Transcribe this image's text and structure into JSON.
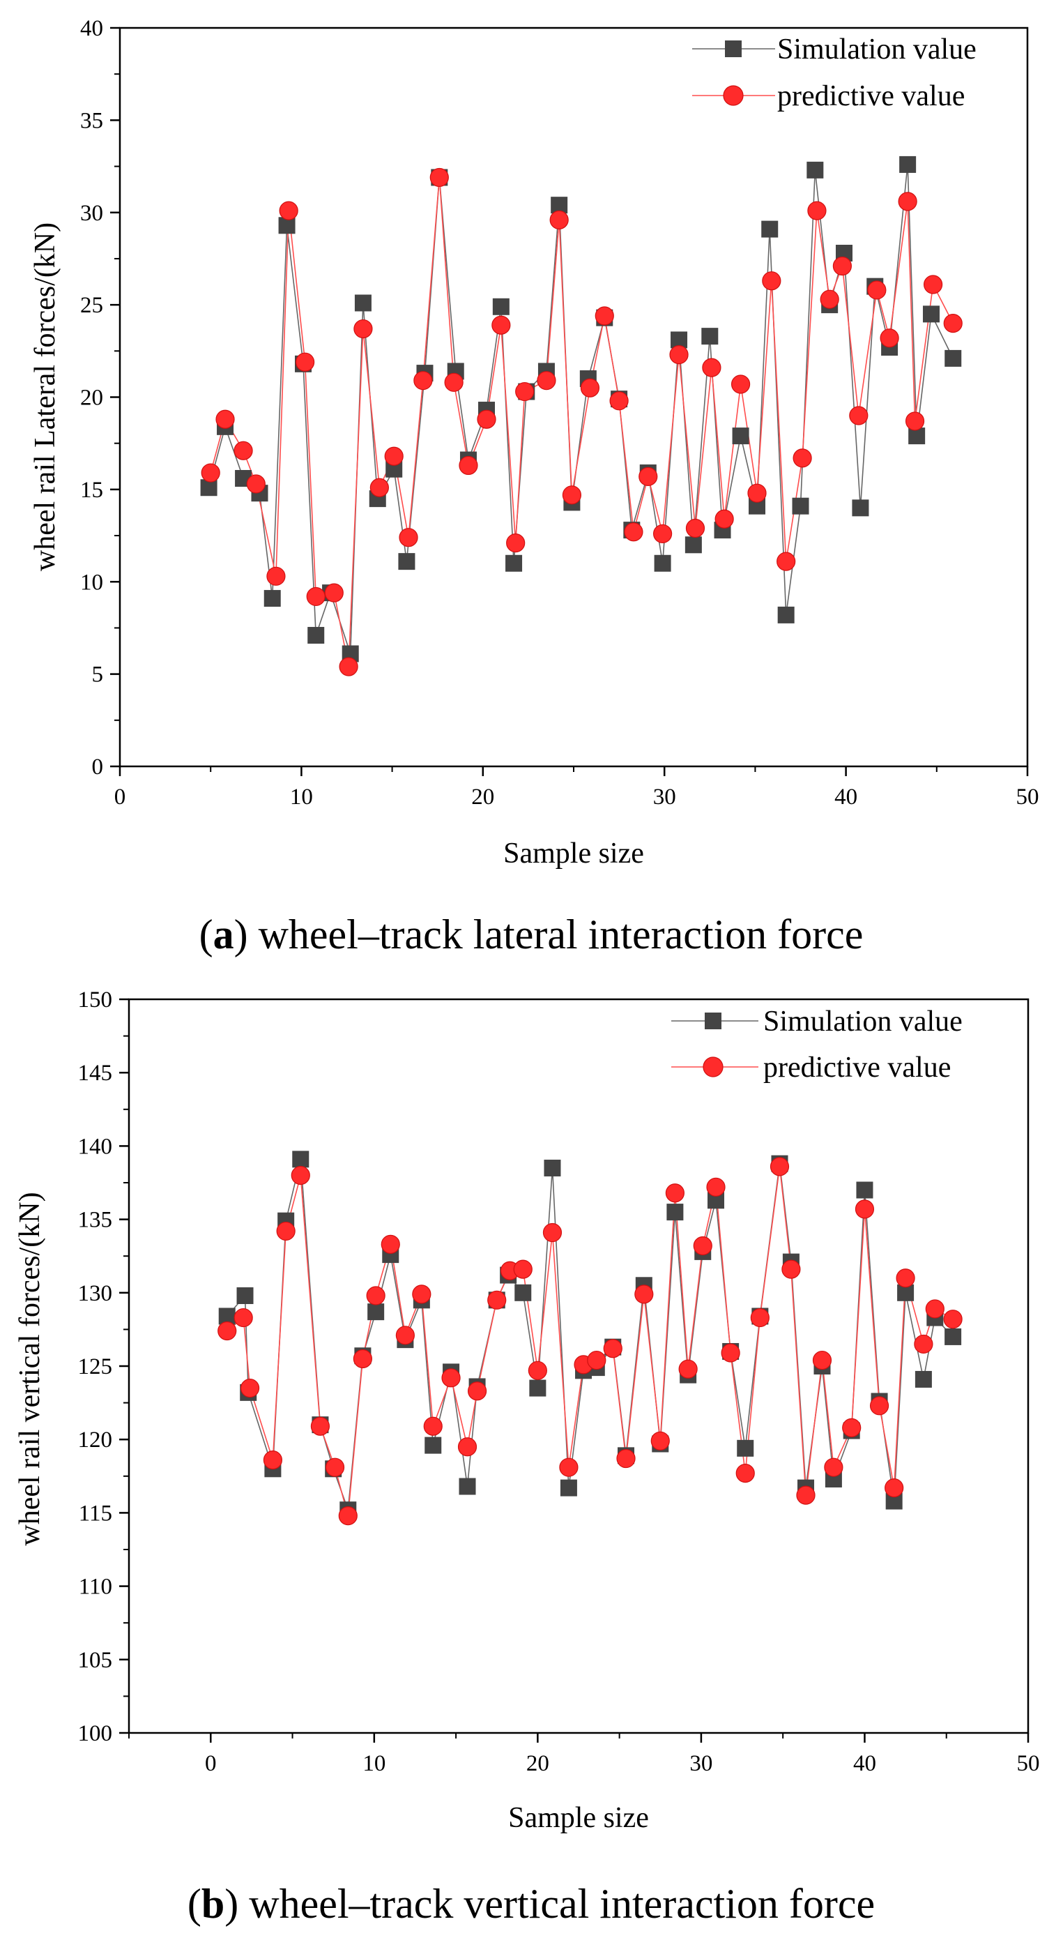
{
  "chart_data": [
    {
      "type": "line",
      "xlabel": "Sample size",
      "ylabel": "wheel rail Lateral forces/(kN)",
      "xlim": [
        0,
        50
      ],
      "ylim": [
        0,
        40
      ],
      "xticks": [
        "0",
        "10",
        "20",
        "30",
        "40",
        "50"
      ],
      "yticks": [
        "0",
        "5",
        "10",
        "15",
        "20",
        "25",
        "30",
        "35",
        "40"
      ],
      "grid": false,
      "legend_position": "top-right",
      "caption_letter": "a",
      "caption_text": "wheel–track lateral interaction force",
      "series": [
        {
          "name": "Simulation value",
          "marker": "square",
          "color": "#444444",
          "line_color": "#666666",
          "x": [
            4.9,
            5.8,
            6.8,
            7.7,
            8.4,
            9.2,
            10.1,
            10.8,
            11.6,
            12.7,
            13.4,
            14.2,
            15.1,
            15.8,
            16.8,
            17.6,
            18.5,
            19.2,
            20.2,
            21.0,
            21.7,
            22.4,
            23.5,
            24.2,
            24.9,
            25.8,
            26.7,
            27.5,
            28.2,
            29.1,
            29.9,
            30.8,
            31.6,
            32.5,
            33.2,
            34.2,
            35.1,
            35.8,
            36.7,
            37.5,
            38.3,
            39.1,
            39.9,
            40.8,
            41.6,
            42.4,
            43.4,
            43.9,
            44.7,
            45.9
          ],
          "y": [
            15.1,
            18.4,
            15.6,
            14.8,
            9.1,
            29.3,
            21.8,
            7.1,
            9.4,
            6.1,
            25.1,
            14.5,
            16.1,
            11.1,
            21.3,
            31.9,
            21.4,
            16.6,
            19.3,
            24.9,
            11.0,
            20.3,
            21.4,
            30.4,
            14.3,
            21.0,
            24.3,
            19.9,
            12.8,
            15.9,
            11.0,
            23.1,
            12.0,
            23.3,
            12.8,
            17.9,
            14.1,
            29.1,
            8.2,
            14.1,
            32.3,
            25.0,
            27.8,
            14.0,
            26.0,
            22.7,
            32.6,
            17.9,
            24.5,
            22.1
          ]
        },
        {
          "name": "predictive value",
          "marker": "circle",
          "color": "#ff2b2b",
          "line_color": "#ff4d4d",
          "x": [
            5.0,
            5.8,
            6.8,
            7.5,
            8.6,
            9.3,
            10.2,
            10.8,
            11.8,
            12.6,
            13.4,
            14.3,
            15.1,
            15.9,
            16.7,
            17.6,
            18.4,
            19.2,
            20.2,
            21.0,
            21.8,
            22.3,
            23.5,
            24.2,
            24.9,
            25.9,
            26.7,
            27.5,
            28.3,
            29.1,
            29.9,
            30.8,
            31.7,
            32.6,
            33.3,
            34.2,
            35.1,
            35.9,
            36.7,
            37.6,
            38.4,
            39.1,
            39.8,
            40.7,
            41.7,
            42.4,
            43.4,
            43.8,
            44.8,
            45.9
          ],
          "y": [
            15.9,
            18.8,
            17.1,
            15.3,
            10.3,
            30.1,
            21.9,
            9.2,
            9.4,
            5.4,
            23.7,
            15.1,
            16.8,
            12.4,
            20.9,
            31.9,
            20.8,
            16.3,
            18.8,
            23.9,
            12.1,
            20.3,
            20.9,
            29.6,
            14.7,
            20.5,
            24.4,
            19.8,
            12.7,
            15.7,
            12.6,
            22.3,
            12.9,
            21.6,
            13.4,
            20.7,
            14.8,
            26.3,
            11.1,
            16.7,
            30.1,
            25.3,
            27.1,
            19.0,
            25.8,
            23.2,
            30.6,
            18.7,
            26.1,
            24.0
          ]
        }
      ]
    },
    {
      "type": "line",
      "xlabel": "Sample size",
      "ylabel": "wheel rail vertical forces/(kN)",
      "xlim": [
        -5,
        50
      ],
      "ylim": [
        100,
        150
      ],
      "xticks": [
        "0",
        "10",
        "20",
        "30",
        "40",
        "50"
      ],
      "yticks": [
        "100",
        "105",
        "110",
        "115",
        "120",
        "125",
        "130",
        "135",
        "140",
        "145",
        "150"
      ],
      "grid": false,
      "legend_position": "top-right",
      "caption_letter": "b",
      "caption_text": "wheel–track vertical interaction force",
      "series": [
        {
          "name": "Simulation value",
          "marker": "square",
          "color": "#444444",
          "line_color": "#666666",
          "x": [
            1.0,
            2.1,
            2.3,
            3.8,
            4.6,
            5.5,
            6.7,
            7.5,
            8.4,
            9.3,
            10.1,
            11.0,
            11.9,
            12.9,
            13.6,
            14.7,
            15.7,
            16.3,
            17.5,
            18.2,
            19.1,
            20.0,
            20.9,
            21.9,
            22.8,
            23.6,
            24.6,
            25.4,
            26.5,
            27.5,
            28.4,
            29.2,
            30.1,
            30.9,
            31.8,
            32.7,
            33.6,
            34.8,
            35.5,
            36.4,
            37.4,
            38.1,
            39.2,
            40.0,
            40.9,
            41.8,
            42.5,
            43.6,
            44.3,
            45.4
          ],
          "y": [
            128.4,
            129.8,
            123.2,
            118.0,
            134.9,
            139.1,
            121.0,
            118.0,
            115.2,
            125.7,
            128.7,
            132.6,
            126.8,
            129.5,
            119.6,
            124.6,
            116.8,
            123.6,
            129.5,
            131.2,
            130.0,
            123.5,
            138.5,
            116.7,
            124.7,
            124.9,
            126.3,
            118.9,
            130.5,
            119.7,
            135.5,
            124.4,
            132.8,
            136.3,
            126.0,
            119.4,
            128.4,
            138.8,
            132.1,
            116.7,
            125.0,
            117.3,
            120.6,
            137.0,
            122.6,
            115.8,
            130.0,
            124.1,
            128.3,
            127.0
          ]
        },
        {
          "name": "predictive value",
          "marker": "circle",
          "color": "#ff2b2b",
          "line_color": "#ff4d4d",
          "x": [
            1.0,
            2.0,
            2.4,
            3.8,
            4.6,
            5.5,
            6.7,
            7.6,
            8.4,
            9.3,
            10.1,
            11.0,
            11.9,
            12.9,
            13.6,
            14.7,
            15.7,
            16.3,
            17.5,
            18.3,
            19.1,
            20.0,
            20.9,
            21.9,
            22.8,
            23.6,
            24.6,
            25.4,
            26.5,
            27.5,
            28.4,
            29.2,
            30.1,
            30.9,
            31.8,
            32.7,
            33.6,
            34.8,
            35.5,
            36.4,
            37.4,
            38.1,
            39.2,
            40.0,
            40.9,
            41.8,
            42.5,
            43.6,
            44.3,
            45.4
          ],
          "y": [
            127.4,
            128.3,
            123.5,
            118.6,
            134.2,
            138.0,
            120.9,
            118.1,
            114.8,
            125.5,
            129.8,
            133.3,
            127.1,
            129.9,
            120.9,
            124.2,
            119.5,
            123.3,
            129.5,
            131.5,
            131.6,
            124.7,
            134.1,
            118.1,
            125.1,
            125.4,
            126.2,
            118.7,
            129.9,
            119.9,
            136.8,
            124.8,
            133.2,
            137.2,
            125.9,
            117.7,
            128.3,
            138.6,
            131.6,
            116.2,
            125.4,
            118.1,
            120.8,
            135.7,
            122.3,
            116.7,
            131.0,
            126.5,
            128.9,
            128.2
          ]
        }
      ]
    }
  ]
}
